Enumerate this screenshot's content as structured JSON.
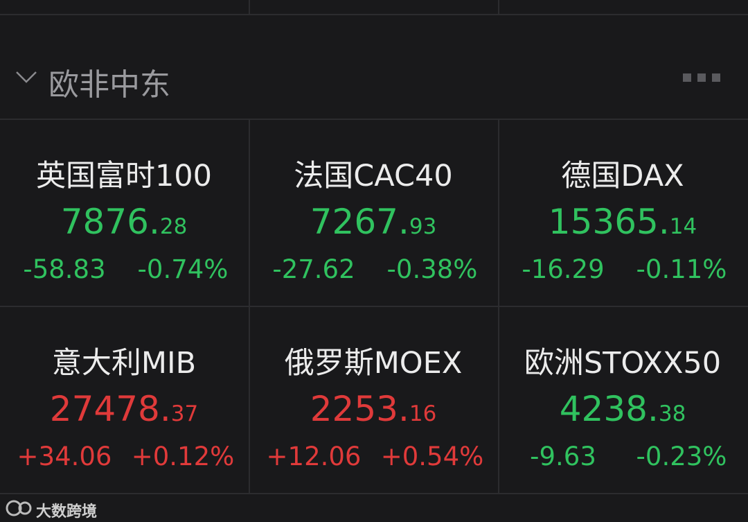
{
  "section": {
    "title": "欧非中东"
  },
  "cards": [
    {
      "name": "英国富时100",
      "price_whole": "7876.",
      "price_frac": "28",
      "change": "-58.83",
      "change_pct": "-0.74%",
      "color": "#30c25f"
    },
    {
      "name": "法国CAC40",
      "price_whole": "7267.",
      "price_frac": "93",
      "change": "-27.62",
      "change_pct": "-0.38%",
      "color": "#30c25f"
    },
    {
      "name": "德国DAX",
      "price_whole": "15365.",
      "price_frac": "14",
      "change": "-16.29",
      "change_pct": "-0.11%",
      "color": "#30c25f"
    },
    {
      "name": "意大利MIB",
      "price_whole": "27478.",
      "price_frac": "37",
      "change": "+34.06",
      "change_pct": "+0.12%",
      "color": "#e03a3a"
    },
    {
      "name": "俄罗斯MOEX",
      "price_whole": "2253.",
      "price_frac": "16",
      "change": "+12.06",
      "change_pct": "+0.54%",
      "color": "#e03a3a"
    },
    {
      "name": "欧洲STOXX50",
      "price_whole": "4238.",
      "price_frac": "38",
      "change": "-9.63",
      "change_pct": "-0.23%",
      "color": "#30c25f"
    }
  ],
  "watermark": "大数跨境"
}
